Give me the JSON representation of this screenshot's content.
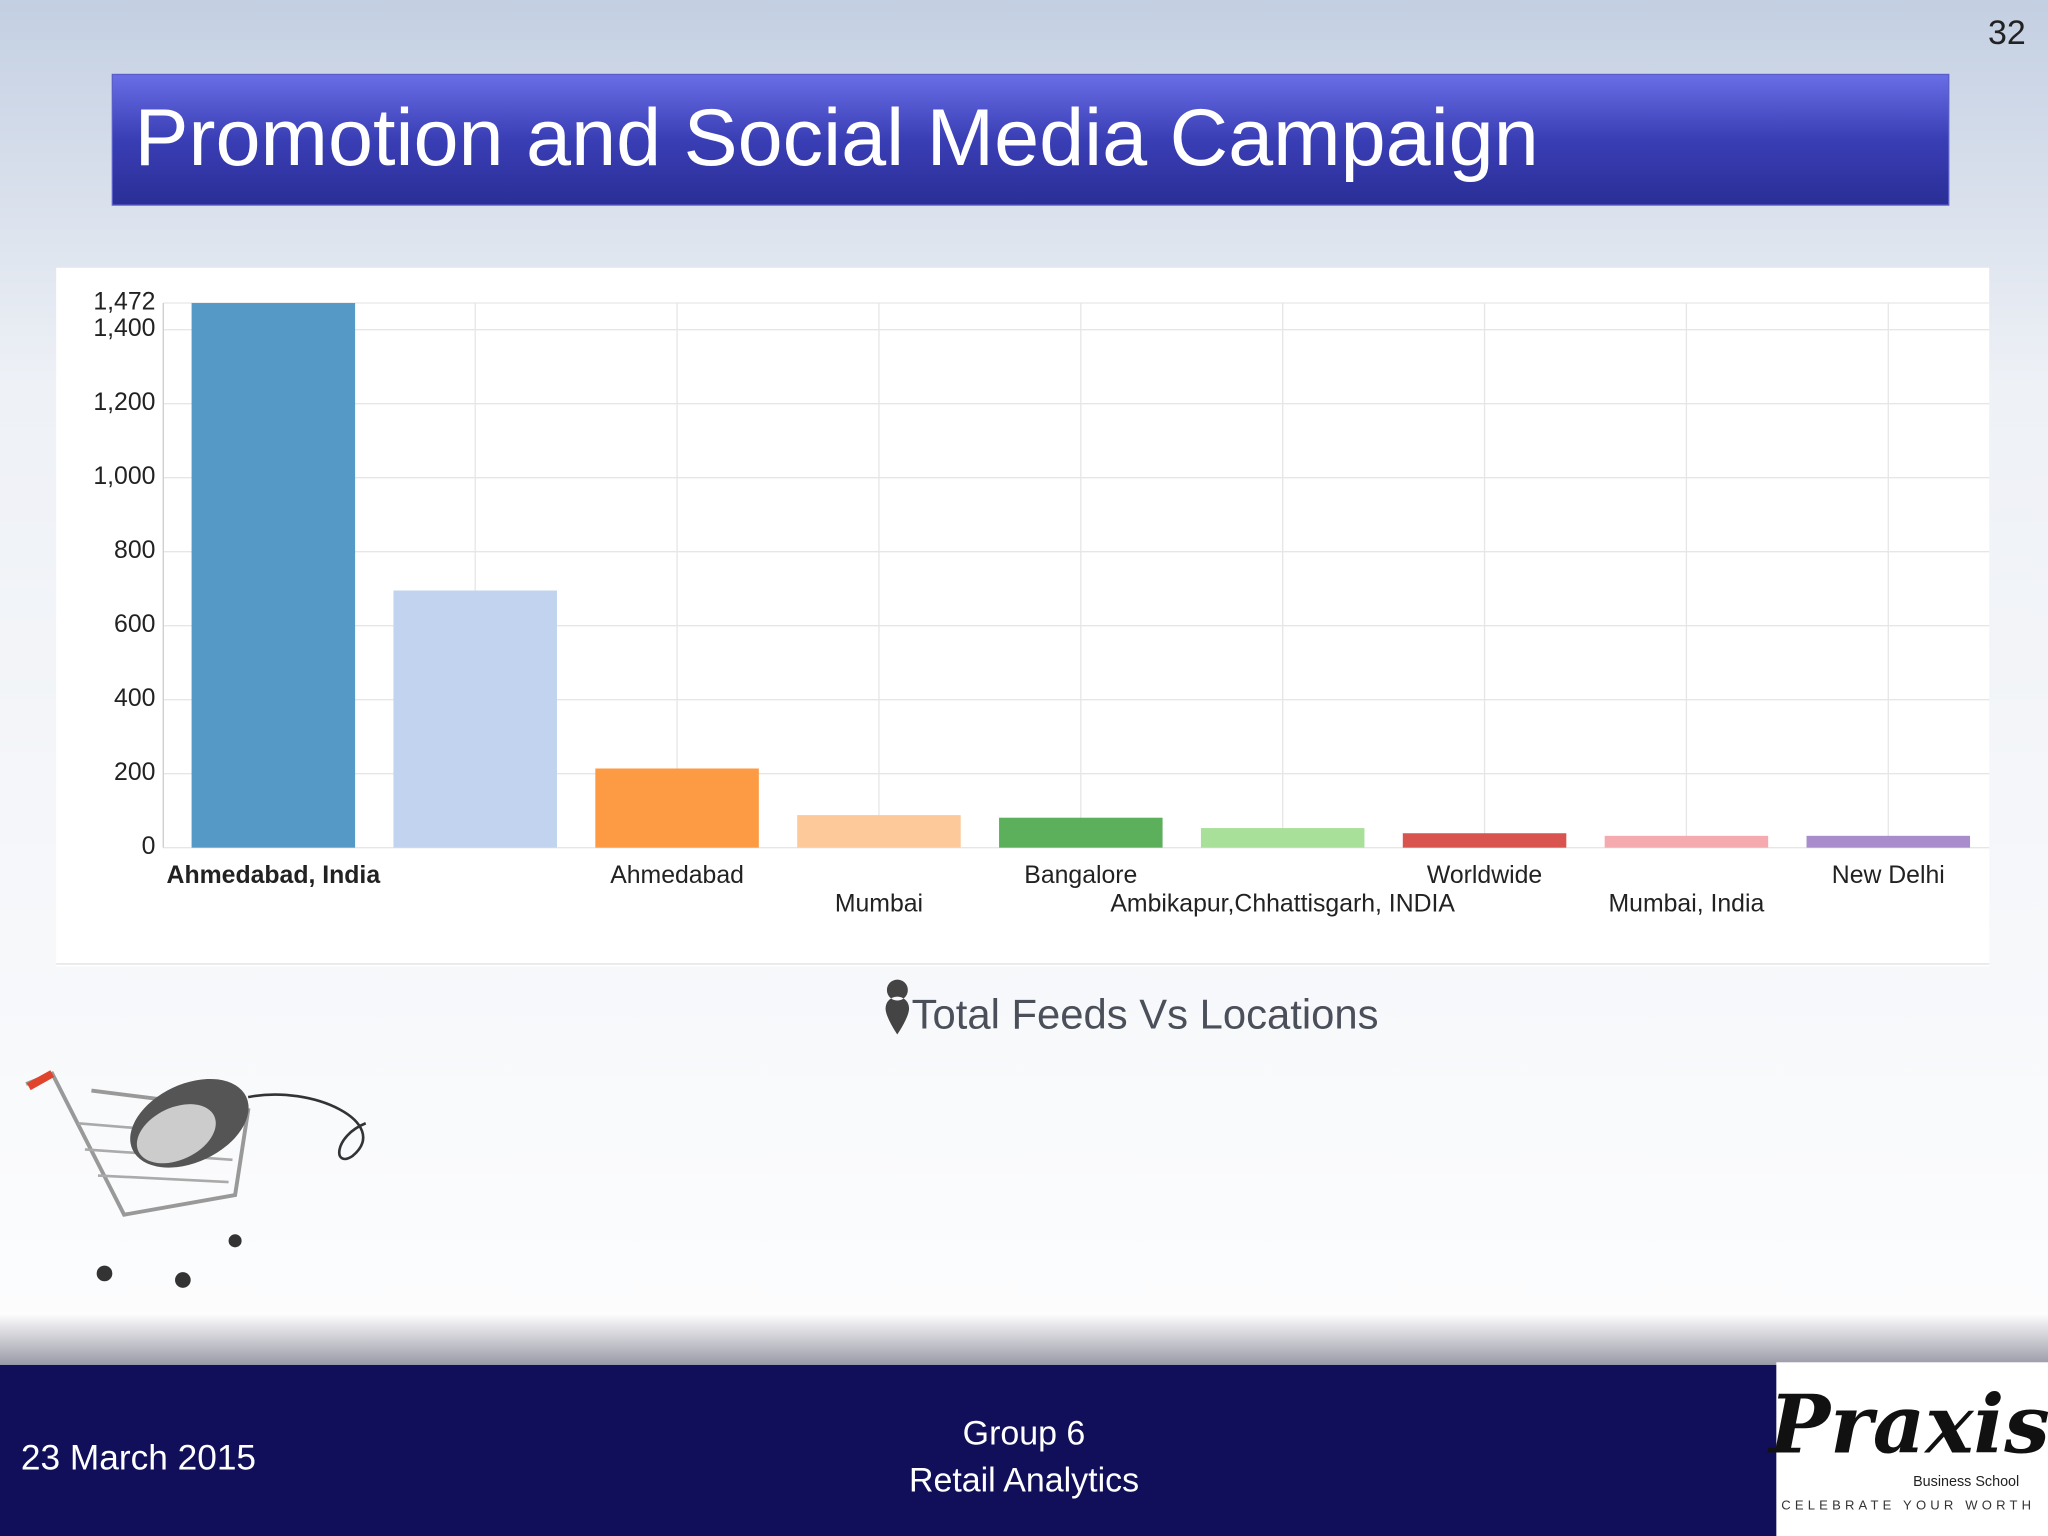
{
  "slide": {
    "title": "Promotion and Social Media Campaign",
    "page_number": "32",
    "date": "23 March 2015",
    "footer_lines": [
      "Group 6",
      "Retail Analytics"
    ],
    "logo": {
      "name": "Praxis",
      "subtitle": "Business School",
      "tagline": "CELEBRATE YOUR WORTH"
    }
  },
  "chart_data": {
    "type": "bar",
    "title": "Total Feeds Vs Locations",
    "categories": [
      "Ahmedabad, India",
      null,
      "Ahmedabad",
      "Mumbai",
      "Bangalore",
      "Ambikapur,Chhattisgarh, INDIA",
      "Worldwide",
      "Mumbai, India",
      "New Delhi"
    ],
    "values": [
      1472,
      695,
      214,
      88,
      81,
      53,
      39,
      32,
      32
    ],
    "colors": [
      "#5599c7",
      "#c1d3ee",
      "#fd9b45",
      "#fdc99a",
      "#5cb05c",
      "#a8e09a",
      "#d9534f",
      "#f5aab0",
      "#a88ccc"
    ],
    "ylim": [
      0,
      1472
    ],
    "yticks": [
      0,
      {
        "value": 200,
        "label": "200"
      },
      400,
      600,
      800,
      {
        "value": 1000,
        "label": "1,000"
      },
      {
        "value": 1200,
        "label": "1,200"
      },
      {
        "value": 1400,
        "label": "1,400"
      },
      {
        "value": 1472,
        "label": "1,472"
      }
    ],
    "grid": true
  }
}
